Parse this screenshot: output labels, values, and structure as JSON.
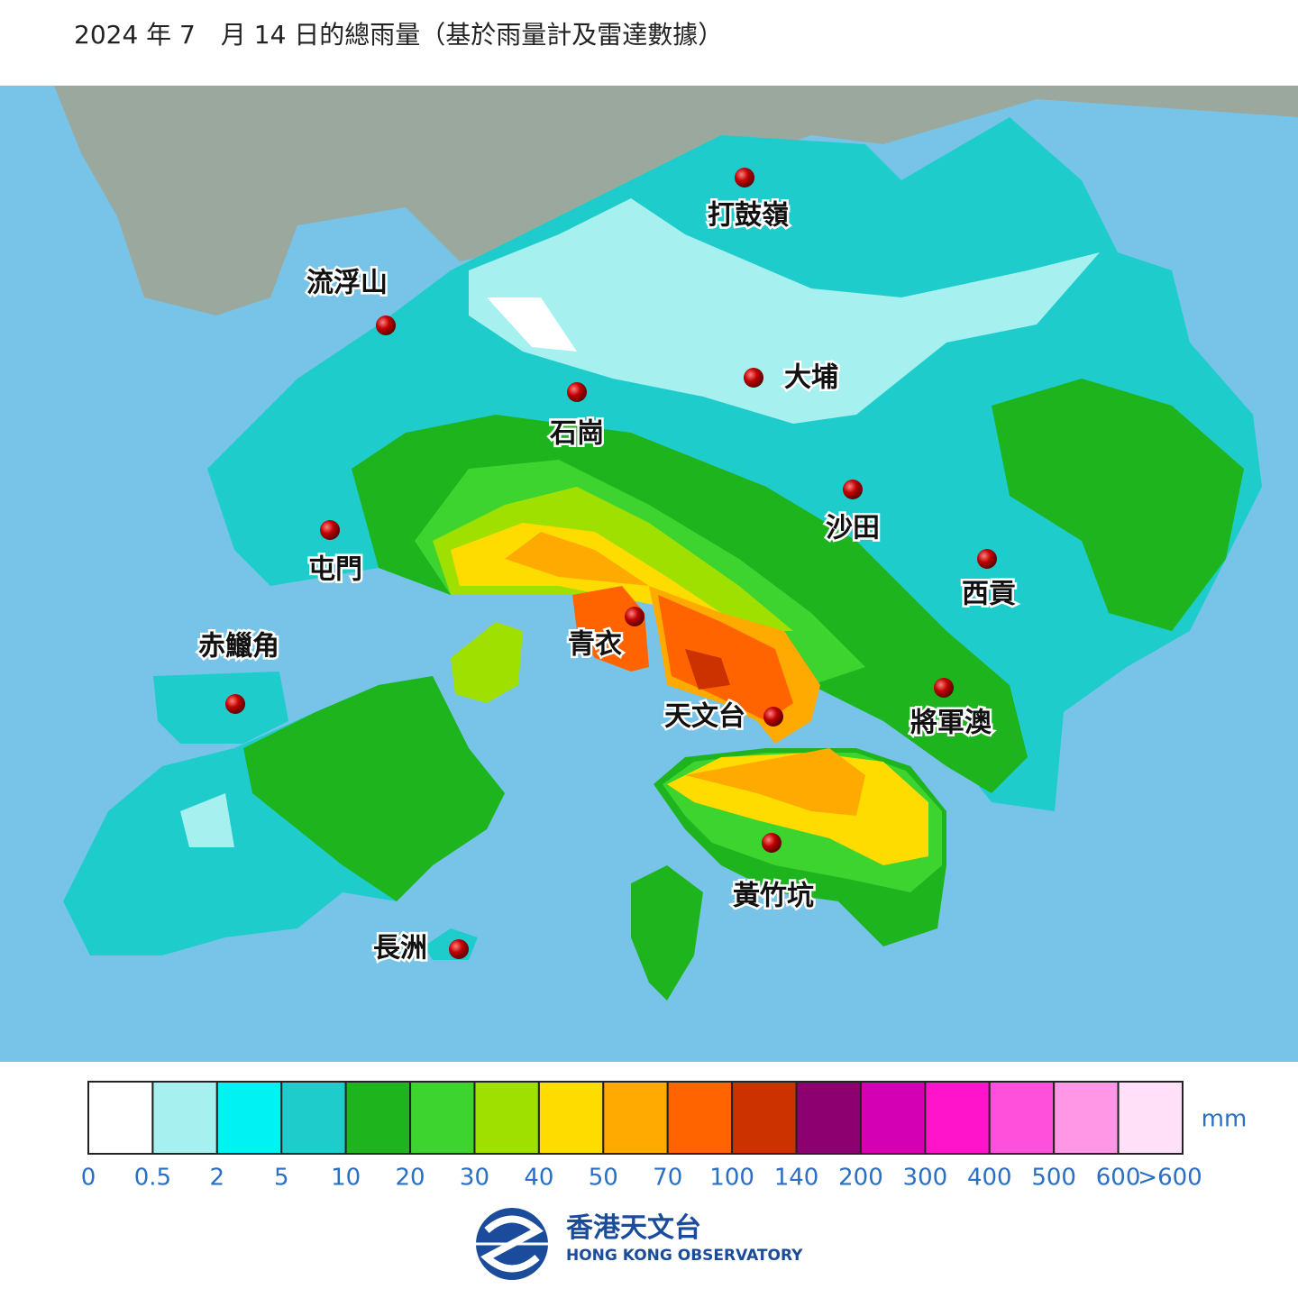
{
  "title": "2024 年 7　月 14 日的總雨量（基於雨量計及雷達數據）",
  "stations": [
    {
      "label": "打鼓嶺"
    },
    {
      "label": "流浮山"
    },
    {
      "label": "大埔"
    },
    {
      "label": "石崗"
    },
    {
      "label": "沙田"
    },
    {
      "label": "屯門"
    },
    {
      "label": "西貢"
    },
    {
      "label": "赤鱲角"
    },
    {
      "label": "青衣"
    },
    {
      "label": "將軍澳"
    },
    {
      "label": "天文台"
    },
    {
      "label": "黃竹坑"
    },
    {
      "label": "長洲"
    }
  ],
  "legend": {
    "colors": [
      "#ffffff",
      "#a6f0f0",
      "#00f2f2",
      "#1fcccc",
      "#1db41d",
      "#3dd430",
      "#a0e000",
      "#ffdc00",
      "#ffaa00",
      "#ff6400",
      "#cc3200",
      "#8c0070",
      "#d400b4",
      "#ff14cc",
      "#ff50dc",
      "#ff96e6",
      "#ffe0f8"
    ],
    "labels": [
      "0",
      "0.5",
      "2",
      "5",
      "10",
      "20",
      "30",
      "40",
      "50",
      "70",
      "100",
      "140",
      "200",
      "300",
      "400",
      "500",
      "600",
      ">600"
    ],
    "unit": "mm"
  },
  "logo": {
    "name_zh": "香港天文台",
    "name_en": "HONG KONG OBSERVATORY"
  }
}
